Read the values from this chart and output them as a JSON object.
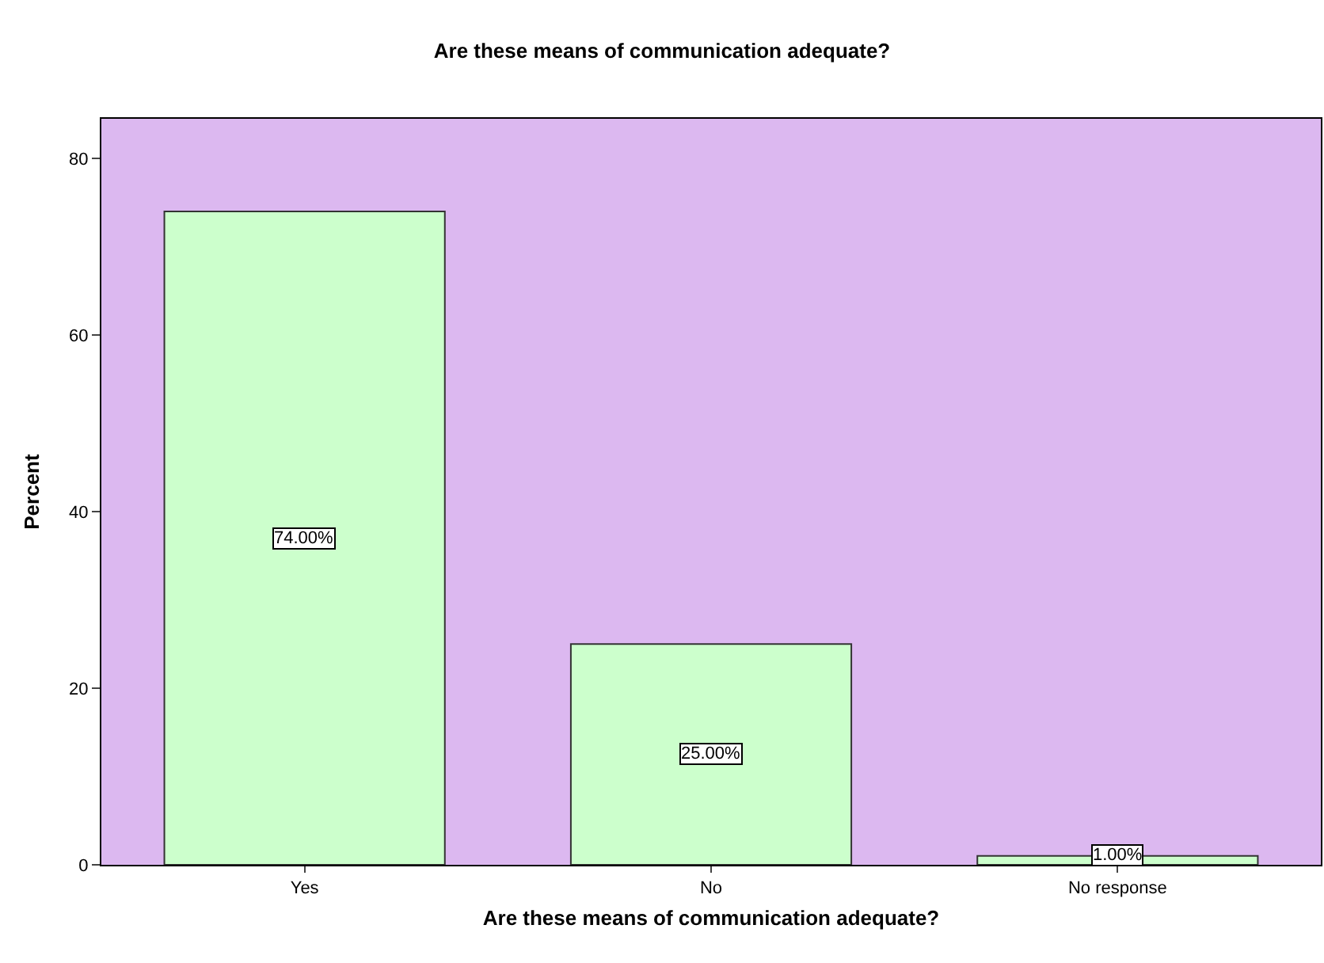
{
  "chart_data": {
    "type": "bar",
    "title": "Are these means of communication adequate?",
    "xlabel": "Are these means of communication adequate?",
    "ylabel": "Percent",
    "categories": [
      "Yes",
      "No",
      "No response"
    ],
    "values": [
      74,
      25,
      1
    ],
    "value_labels": [
      "74.00%",
      "25.00%",
      "1.00%"
    ],
    "color": "#ccffcc",
    "ylim": [
      0,
      84.5
    ],
    "yticks": [
      0,
      20,
      40,
      60,
      80
    ],
    "grid": false
  }
}
